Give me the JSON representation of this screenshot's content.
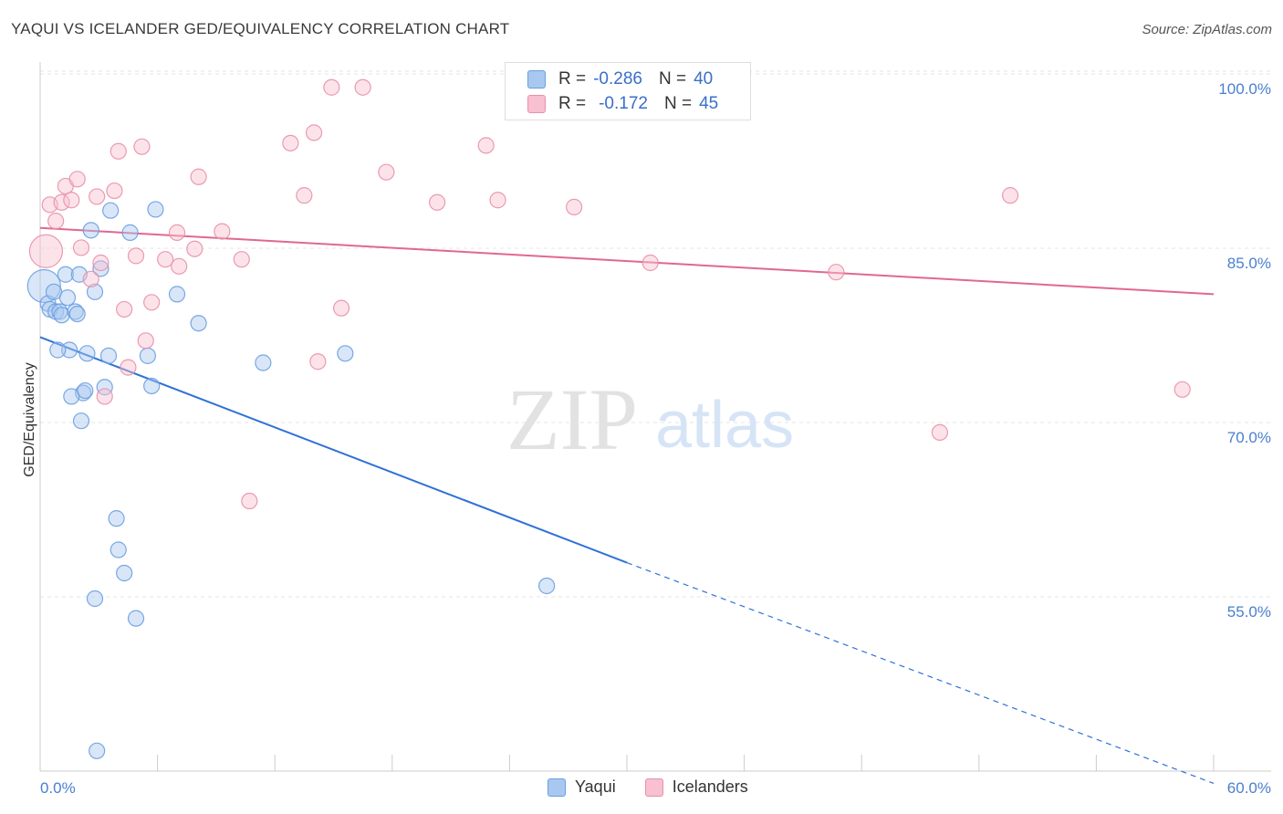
{
  "title": "YAQUI VS ICELANDER GED/EQUIVALENCY CORRELATION CHART",
  "source": "Source: ZipAtlas.com",
  "watermark": {
    "zip": "ZIP",
    "atlas": "atlas"
  },
  "legend": {
    "rows": [
      {
        "r_label": "R =",
        "r_value": "-0.286",
        "n_label": "N =",
        "n_value": "40",
        "color": "#a8c8f0",
        "border": "#6a9fe0"
      },
      {
        "r_label": "R =",
        "r_value": "-0.172",
        "n_label": "N =",
        "n_value": "45",
        "color": "#f8c0d0",
        "border": "#e890a8"
      }
    ]
  },
  "bottom_legend": {
    "yaqui": "Yaqui",
    "icelanders": "Icelanders"
  },
  "chart_data": {
    "type": "scatter",
    "ylabel": "GED/Equivalency",
    "xlabel": "",
    "xlim": [
      0,
      60
    ],
    "ylim": [
      40,
      102
    ],
    "x_tick_labels": {
      "min": "0.0%",
      "max": "60.0%"
    },
    "y_ticks": [
      {
        "value": 100,
        "label": "100.0%"
      },
      {
        "value": 85,
        "label": "85.0%"
      },
      {
        "value": 70,
        "label": "70.0%"
      },
      {
        "value": 55,
        "label": "55.0%"
      }
    ],
    "series": [
      {
        "name": "Yaqui",
        "color": "#6a9fe0",
        "fill": "#a8c8f0",
        "trend": {
          "x0": 0,
          "y0": 78.6,
          "x1": 30,
          "y1": 59.2,
          "dash_to_x": 60,
          "dash_to_y": 40.2,
          "color": "#2f72d6"
        },
        "points": [
          [
            0.2,
            83.0
          ],
          [
            0.4,
            81.5
          ],
          [
            0.5,
            81.0
          ],
          [
            0.7,
            82.5
          ],
          [
            0.8,
            80.8
          ],
          [
            1.0,
            80.8
          ],
          [
            1.1,
            80.5
          ],
          [
            1.3,
            84.0
          ],
          [
            1.4,
            82.0
          ],
          [
            1.5,
            77.5
          ],
          [
            0.9,
            77.5
          ],
          [
            1.8,
            80.8
          ],
          [
            1.9,
            80.6
          ],
          [
            2.0,
            84.0
          ],
          [
            2.1,
            71.4
          ],
          [
            2.2,
            73.8
          ],
          [
            2.4,
            77.2
          ],
          [
            2.6,
            87.8
          ],
          [
            2.8,
            82.5
          ],
          [
            3.1,
            84.5
          ],
          [
            3.3,
            74.3
          ],
          [
            3.5,
            77.0
          ],
          [
            3.6,
            89.5
          ],
          [
            3.9,
            63.0
          ],
          [
            4.0,
            60.3
          ],
          [
            4.3,
            58.3
          ],
          [
            4.6,
            87.6
          ],
          [
            4.9,
            54.4
          ],
          [
            5.5,
            77.0
          ],
          [
            5.7,
            74.4
          ],
          [
            5.9,
            89.6
          ],
          [
            7.0,
            82.3
          ],
          [
            8.1,
            79.8
          ],
          [
            11.4,
            76.4
          ],
          [
            15.6,
            77.2
          ],
          [
            25.9,
            57.2
          ],
          [
            2.8,
            56.1
          ],
          [
            2.9,
            43.0
          ],
          [
            1.6,
            73.5
          ],
          [
            2.3,
            74.0
          ]
        ]
      },
      {
        "name": "Icelanders",
        "color": "#e890a8",
        "fill": "#f8c0d0",
        "trend": {
          "x0": 0,
          "y0": 88.0,
          "x1": 60,
          "y1": 82.3,
          "color": "#e06890"
        },
        "points": [
          [
            0.3,
            86.0
          ],
          [
            0.5,
            90.0
          ],
          [
            0.8,
            88.6
          ],
          [
            1.1,
            90.2
          ],
          [
            1.3,
            91.6
          ],
          [
            1.6,
            90.4
          ],
          [
            1.9,
            92.2
          ],
          [
            2.1,
            86.3
          ],
          [
            2.6,
            83.6
          ],
          [
            2.9,
            90.7
          ],
          [
            3.1,
            85.0
          ],
          [
            3.3,
            73.5
          ],
          [
            3.8,
            91.2
          ],
          [
            4.0,
            94.6
          ],
          [
            4.3,
            81.0
          ],
          [
            4.5,
            76.0
          ],
          [
            4.9,
            85.6
          ],
          [
            5.2,
            95.0
          ],
          [
            5.4,
            78.3
          ],
          [
            5.7,
            81.6
          ],
          [
            6.4,
            85.3
          ],
          [
            7.0,
            87.6
          ],
          [
            7.1,
            84.7
          ],
          [
            7.9,
            86.2
          ],
          [
            8.1,
            92.4
          ],
          [
            9.3,
            87.7
          ],
          [
            10.3,
            85.3
          ],
          [
            10.7,
            64.5
          ],
          [
            12.8,
            95.3
          ],
          [
            13.5,
            90.8
          ],
          [
            14.0,
            96.2
          ],
          [
            14.2,
            76.5
          ],
          [
            14.9,
            100.1
          ],
          [
            15.4,
            81.1
          ],
          [
            16.5,
            100.1
          ],
          [
            17.7,
            92.8
          ],
          [
            20.3,
            90.2
          ],
          [
            22.8,
            95.1
          ],
          [
            23.4,
            90.4
          ],
          [
            27.3,
            89.8
          ],
          [
            31.2,
            85.0
          ],
          [
            40.7,
            84.2
          ],
          [
            46.0,
            70.4
          ],
          [
            49.6,
            90.8
          ],
          [
            58.4,
            74.1
          ]
        ]
      }
    ]
  }
}
